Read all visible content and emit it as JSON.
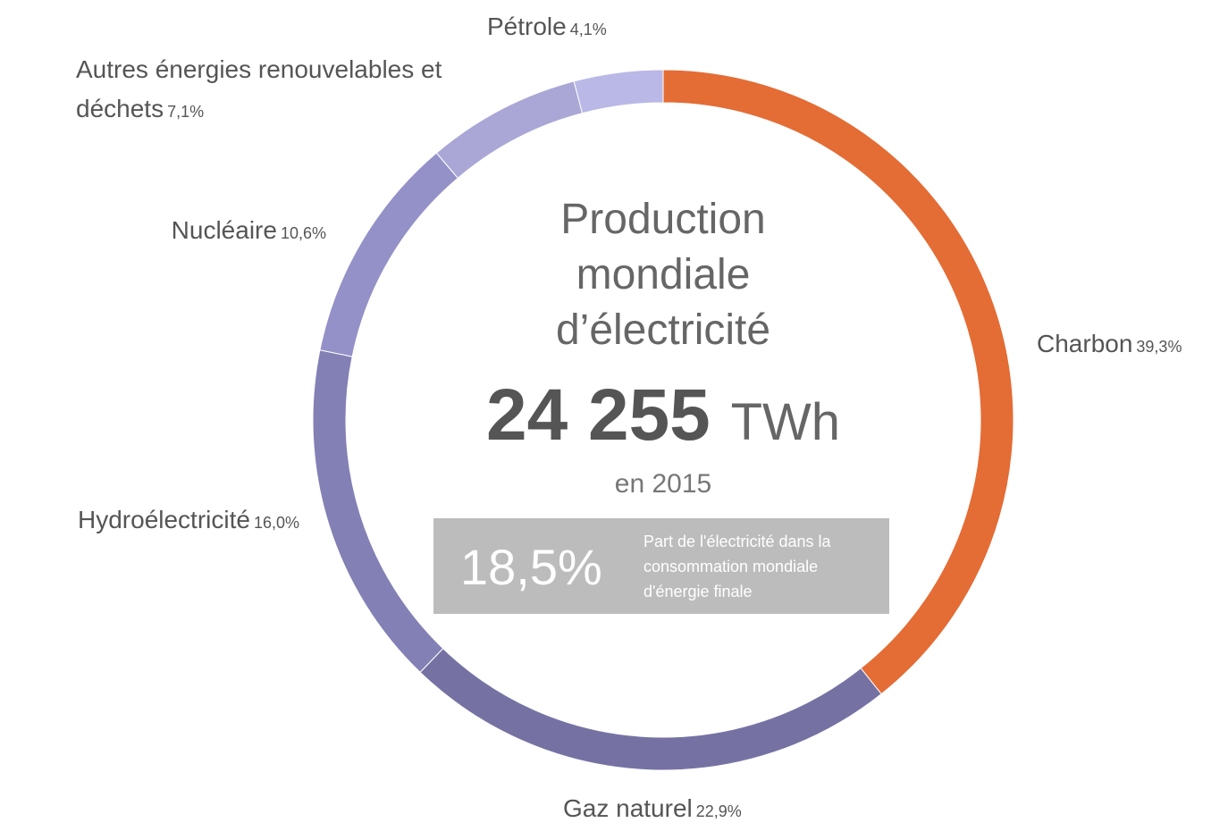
{
  "chart_data": {
    "type": "donut",
    "categories": [
      "Charbon",
      "Gaz naturel",
      "Hydroélectricité",
      "Nucléaire",
      "Autres énergies renouvelables et déchets",
      "Pétrole"
    ],
    "values": [
      39.3,
      22.9,
      16.0,
      10.6,
      7.1,
      4.1
    ],
    "value_labels": [
      "39,3%",
      "22,9%",
      "16,0%",
      "10,6%",
      "7,1%",
      "4,1%"
    ],
    "colors": [
      "#e46c35",
      "#7572a3",
      "#8380b5",
      "#9491c8",
      "#aaa7d6",
      "#b9b8e6"
    ],
    "title": "Production mondiale d’électricité",
    "annotations": {
      "total": "24 255",
      "unit": "TWh",
      "year": "en 2015",
      "share": "18,5%",
      "share_text": "Part de l'électricité dans la consommation mondiale d'énergie finale"
    }
  }
}
